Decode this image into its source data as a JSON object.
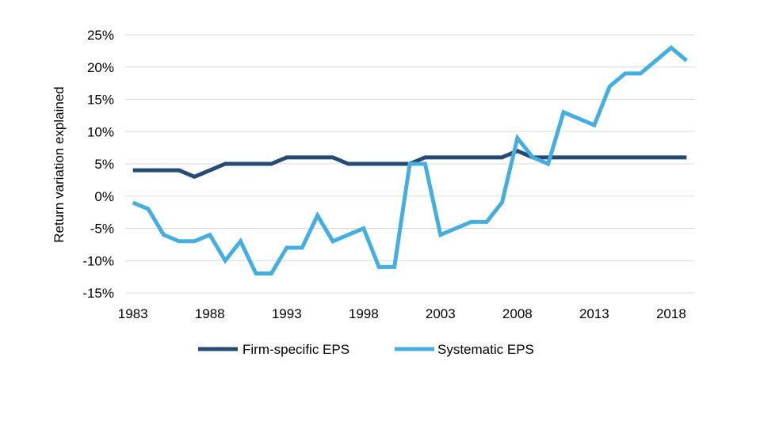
{
  "chart_data": {
    "type": "line",
    "title": "",
    "xlabel": "",
    "ylabel": "Return variation explained",
    "x": [
      1983,
      1984,
      1985,
      1986,
      1987,
      1988,
      1989,
      1990,
      1991,
      1992,
      1993,
      1994,
      1995,
      1996,
      1997,
      1998,
      1999,
      2000,
      2001,
      2002,
      2003,
      2004,
      2005,
      2006,
      2007,
      2008,
      2009,
      2010,
      2011,
      2012,
      2013,
      2014,
      2015,
      2016,
      2017,
      2018,
      2019
    ],
    "x_ticks": [
      1983,
      1988,
      1993,
      1998,
      2003,
      2008,
      2013,
      2018
    ],
    "x_tick_labels": [
      "1983",
      "1988",
      "1993",
      "1998",
      "2003",
      "2008",
      "2013",
      "2018"
    ],
    "xlim": [
      1982.5,
      2019.5
    ],
    "y_ticks": [
      -15,
      -10,
      -5,
      0,
      5,
      10,
      15,
      20,
      25
    ],
    "y_tick_labels": [
      "-15%",
      "-10%",
      "-5%",
      "0%",
      "5%",
      "10%",
      "15%",
      "20%",
      "25%"
    ],
    "ylim": [
      -15,
      25
    ],
    "grid": "horizontal",
    "legend_position": "bottom",
    "series": [
      {
        "name": "Firm-specific EPS",
        "color": "#264a74",
        "values": [
          4,
          4,
          4,
          4,
          3,
          4,
          5,
          5,
          5,
          5,
          6,
          6,
          6,
          6,
          5,
          5,
          5,
          5,
          5,
          6,
          6,
          6,
          6,
          6,
          6,
          7,
          6,
          6,
          6,
          6,
          6,
          6,
          6,
          6,
          6,
          6,
          6
        ]
      },
      {
        "name": "Systematic EPS",
        "color": "#45aee1",
        "values": [
          -1,
          -2,
          -6,
          -7,
          -7,
          -6,
          -10,
          -7,
          -12,
          -12,
          -8,
          -8,
          -3,
          -7,
          -6,
          -5,
          -11,
          -11,
          5,
          5,
          -6,
          -5,
          -4,
          -4,
          -1,
          9,
          6,
          5,
          13,
          12,
          11,
          17,
          19,
          19,
          21,
          23,
          21
        ]
      }
    ]
  }
}
